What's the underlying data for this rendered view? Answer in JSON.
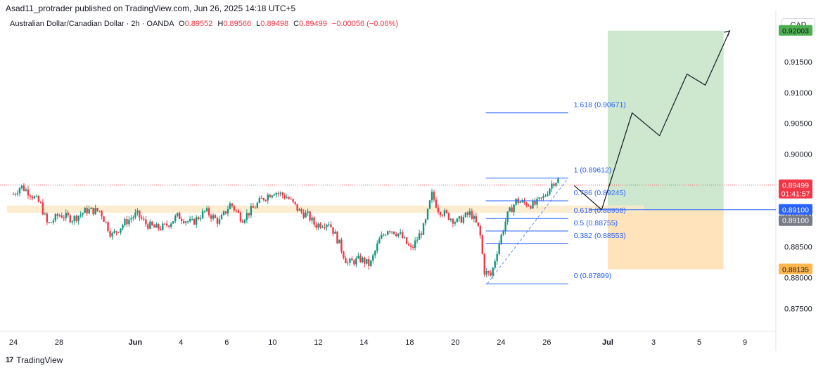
{
  "header": {
    "published_line": "Asad11_protrader published on TradingView.com, Jun 26, 2025 14:18 UTC+5"
  },
  "legend": {
    "symbol_line": "Australian Dollar/Canadian Dollar · 2h · OANDA",
    "o_label": "O",
    "o_value": "0.89552",
    "h_label": "H",
    "h_value": "0.89566",
    "l_label": "L",
    "l_value": "0.89498",
    "c_label": "C",
    "c_value": "0.89499",
    "change": "−0.00056 (−0.06%)"
  },
  "currency_button": "CAD",
  "footer": {
    "brand": "TradingView",
    "logo_glyph": "17"
  },
  "colors": {
    "up": "#089981",
    "down": "#f23645",
    "fib": "#2962ff",
    "target_zone": "#c8e6c9",
    "stop_zone": "#ffe0b2",
    "sr_zone": "#fde8c4"
  },
  "chart_data": {
    "type": "candlestick",
    "y_axis": {
      "range": [
        0.8715,
        0.9233
      ],
      "ticks": [
        "0.87500",
        "0.88000",
        "0.88500",
        "0.89000",
        "0.89500",
        "0.90000",
        "0.90500",
        "0.91000",
        "0.91500"
      ]
    },
    "x_axis": {
      "ticks": [
        {
          "label": "24",
          "pos": 0.0
        },
        {
          "label": "28",
          "pos": 0.1
        },
        {
          "label": "Jun",
          "pos": 0.2667
        },
        {
          "label": "4",
          "pos": 0.3667
        },
        {
          "label": "6",
          "pos": 0.4667
        },
        {
          "label": "10",
          "pos": 0.5667
        },
        {
          "label": "12",
          "pos": 0.6667
        },
        {
          "label": "14",
          "pos": 0.7667
        },
        {
          "label": "18",
          "pos": 0.8667
        },
        {
          "label": "20",
          "pos": 0.9667
        },
        {
          "label": "24",
          "pos": 1.0667
        },
        {
          "label": "26",
          "pos": 1.1667
        },
        {
          "label": "Jul",
          "pos": 1.3
        },
        {
          "label": "3",
          "pos": 1.4
        },
        {
          "label": "5",
          "pos": 1.5
        },
        {
          "label": "9",
          "pos": 1.6
        }
      ]
    },
    "price_path": [
      [
        0,
        0.8935
      ],
      [
        0.016,
        0.8948
      ],
      [
        0.035,
        0.8938
      ],
      [
        0.06,
        0.8918
      ],
      [
        0.075,
        0.8885
      ],
      [
        0.1,
        0.8902
      ],
      [
        0.13,
        0.8895
      ],
      [
        0.16,
        0.8909
      ],
      [
        0.19,
        0.8908
      ],
      [
        0.215,
        0.8868
      ],
      [
        0.245,
        0.889
      ],
      [
        0.27,
        0.8903
      ],
      [
        0.29,
        0.8887
      ],
      [
        0.31,
        0.888
      ],
      [
        0.33,
        0.8882
      ],
      [
        0.36,
        0.89
      ],
      [
        0.39,
        0.8888
      ],
      [
        0.42,
        0.8908
      ],
      [
        0.45,
        0.889
      ],
      [
        0.475,
        0.892
      ],
      [
        0.5,
        0.8895
      ],
      [
        0.52,
        0.8909
      ],
      [
        0.545,
        0.8928
      ],
      [
        0.57,
        0.894
      ],
      [
        0.6,
        0.893
      ],
      [
        0.625,
        0.8908
      ],
      [
        0.645,
        0.89
      ],
      [
        0.66,
        0.8885
      ],
      [
        0.69,
        0.889
      ],
      [
        0.71,
        0.886
      ],
      [
        0.73,
        0.8823
      ],
      [
        0.76,
        0.883
      ],
      [
        0.78,
        0.882
      ],
      [
        0.8,
        0.886
      ],
      [
        0.82,
        0.888
      ],
      [
        0.845,
        0.887
      ],
      [
        0.87,
        0.8845
      ],
      [
        0.9,
        0.8885
      ],
      [
        0.915,
        0.8935
      ],
      [
        0.93,
        0.891
      ],
      [
        0.95,
        0.89
      ],
      [
        0.97,
        0.889
      ],
      [
        1.0,
        0.8905
      ],
      [
        1.02,
        0.8875
      ],
      [
        1.03,
        0.881
      ],
      [
        1.045,
        0.8803
      ],
      [
        1.06,
        0.885
      ],
      [
        1.08,
        0.89
      ],
      [
        1.1,
        0.8925
      ],
      [
        1.12,
        0.892
      ],
      [
        1.14,
        0.8918
      ],
      [
        1.16,
        0.893
      ],
      [
        1.18,
        0.8955
      ],
      [
        1.195,
        0.8959
      ]
    ],
    "current_price": "0.89499",
    "countdown": "01:41:57",
    "price_labels": [
      "0.92003",
      "0.89100",
      "0.88135"
    ],
    "fibonacci": [
      {
        "label": "1.618 (0.90671)",
        "value": 0.90671
      },
      {
        "label": "1 (0.89612)",
        "value": 0.89612
      },
      {
        "label": "0.786 (0.89245)",
        "value": 0.89245
      },
      {
        "label": "0.618 (0.88958)",
        "value": 0.88958
      },
      {
        "label": "0.5 (0.88755)",
        "value": 0.88755
      },
      {
        "label": "0.382 (0.88553)",
        "value": 0.88553
      },
      {
        "label": "0 (0.87899)",
        "value": 0.87899
      }
    ],
    "fib_span": [
      1.0333,
      1.2133
    ],
    "position": {
      "entry": 0.891,
      "target": 0.92003,
      "stop": 0.88135,
      "x_start": 1.3,
      "x_end": 1.5533
    },
    "sr_zone": {
      "low": 0.8905,
      "high": 0.8917
    },
    "projection_path": [
      [
        1.2267,
        0.8949
      ],
      [
        1.2867,
        0.891
      ],
      [
        1.3533,
        0.9067
      ],
      [
        1.4133,
        0.903
      ],
      [
        1.4733,
        0.913
      ],
      [
        1.5133,
        0.9112
      ],
      [
        1.5667,
        0.92
      ]
    ]
  }
}
